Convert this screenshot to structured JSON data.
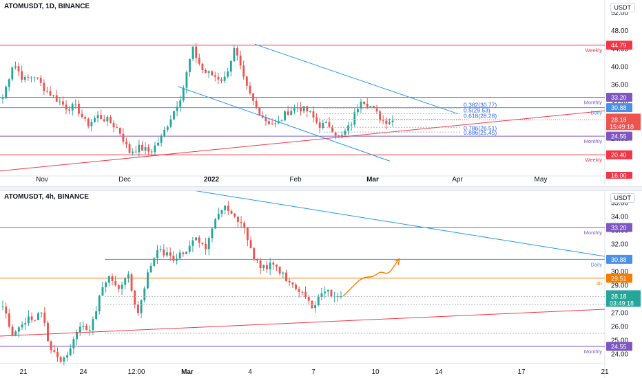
{
  "chart_data": [
    {
      "type": "candlestick",
      "title": "ATOMUSDT, 1D, BINANCE",
      "currency": "USDT",
      "x_ticks": [
        "Nov",
        "Dec",
        "2022",
        "Feb",
        "Mar",
        "Apr",
        "May"
      ],
      "y_ticks": [
        "52.00",
        "48.00",
        "44.00",
        "40.00",
        "36.00",
        "32.00",
        "28.00",
        "24.00",
        "20.00",
        "16.00"
      ],
      "ylim": [
        16,
        53
      ],
      "levels": [
        {
          "price": 44.79,
          "tag": "Weekly",
          "badge": "44.79",
          "color": "#f23645"
        },
        {
          "price": 33.2,
          "tag": "Monthly",
          "badge": "33.20",
          "color": "#7e57c2"
        },
        {
          "price": 30.88,
          "tag": "Daily",
          "badge": "30.88",
          "color": "#4c8fe6"
        },
        {
          "price": 24.55,
          "tag": "Monthly",
          "badge": "24.55",
          "color": "#7e57c2"
        },
        {
          "price": 20.4,
          "tag": "Weekly",
          "badge": "20.40",
          "color": "#f23645"
        }
      ],
      "fib_labels": [
        "0.382(30.77)",
        "0.5(29.53)",
        "0.618(28.28)",
        "0.786(26.51)",
        "0.886(25.45)"
      ],
      "current_price": "28.18",
      "countdown": "15:49:18",
      "partial_badge": "16.00",
      "colors": {
        "up": "#26a69a",
        "down": "#ef5350",
        "trend": "#f23645",
        "channel": "#2196f3"
      }
    },
    {
      "type": "candlestick",
      "title": "ATOMUSDT, 4h, BINANCE",
      "currency": "USDT",
      "x_ticks": [
        "21",
        "24",
        "12:00",
        "Mar",
        "4",
        "7",
        "10",
        "14",
        "17",
        "21"
      ],
      "y_ticks": [
        "35.00",
        "34.00",
        "33.00",
        "32.00",
        "31.00",
        "30.00",
        "29.00",
        "28.00",
        "27.00",
        "26.00",
        "25.00",
        "24.00"
      ],
      "ylim": [
        23.4,
        35.3
      ],
      "levels": [
        {
          "price": 33.2,
          "tag": "Monthly",
          "badge": "33.20",
          "color": "#7e57c2"
        },
        {
          "price": 30.88,
          "tag": "Daily",
          "badge": "30.88",
          "color": "#4c8fe6"
        },
        {
          "price": 29.51,
          "tag": "4h",
          "badge": "29.51",
          "color": "#f57c00"
        },
        {
          "price": 24.55,
          "tag": "Monthly",
          "badge": "24.55",
          "color": "#7e57c2"
        }
      ],
      "current_price": "28.18",
      "countdown": "03:49:18",
      "colors": {
        "up": "#26a69a",
        "down": "#ef5350",
        "trend": "#f23645",
        "channel": "#2196f3",
        "projection": "#f57c00"
      }
    }
  ]
}
